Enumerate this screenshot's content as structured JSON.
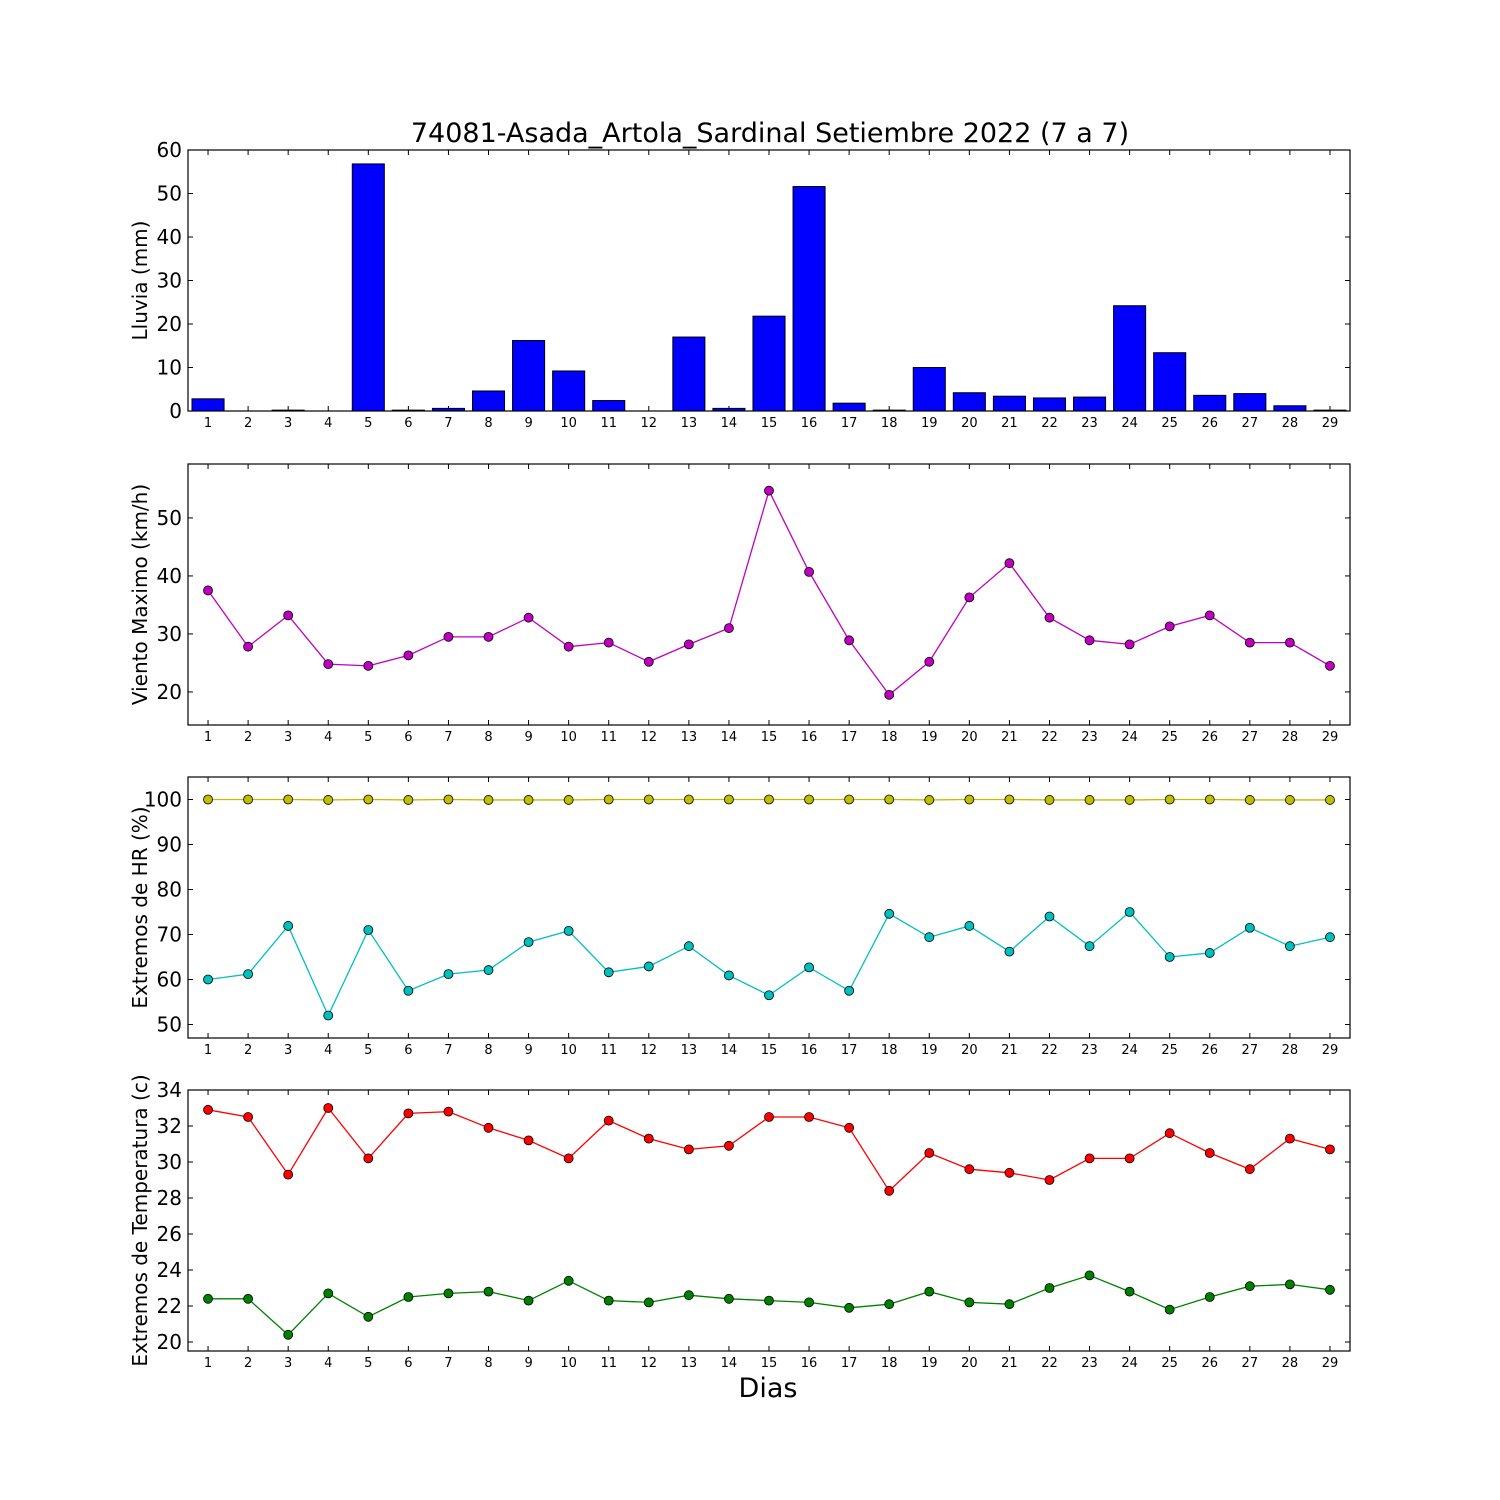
{
  "figure": {
    "title": "74081-Asada_Artola_Sardinal Setiembre 2022  (7 a 7)",
    "xlabel": "Dias"
  },
  "chart_data": [
    {
      "type": "bar",
      "ylabel": "Lluvia (mm)",
      "ylim": [
        0,
        60
      ],
      "yticks": [
        0,
        10,
        20,
        30,
        40,
        50,
        60
      ],
      "xticks": [
        1,
        2,
        3,
        4,
        5,
        6,
        7,
        8,
        9,
        10,
        11,
        12,
        13,
        14,
        15,
        16,
        17,
        18,
        19,
        20,
        21,
        22,
        23,
        24,
        25,
        26,
        27,
        28,
        29
      ],
      "grid": false,
      "series": [
        {
          "color": "#0000ff",
          "x": [
            1,
            2,
            3,
            4,
            5,
            6,
            7,
            8,
            9,
            10,
            11,
            12,
            13,
            14,
            15,
            16,
            17,
            18,
            19,
            20,
            21,
            22,
            23,
            24,
            25,
            26,
            27,
            28,
            29
          ],
          "values": [
            2.8,
            0,
            0.2,
            0,
            56.8,
            0.2,
            0.6,
            4.6,
            16.2,
            9.2,
            2.4,
            0,
            17.0,
            0.6,
            21.8,
            51.6,
            1.8,
            0.2,
            10.0,
            4.2,
            3.4,
            3.0,
            3.2,
            24.2,
            13.4,
            3.6,
            4.0,
            1.2,
            0.2
          ]
        }
      ]
    },
    {
      "type": "line",
      "ylabel": "Viento Maximo (km/h)",
      "ylim": [
        14.3,
        59.3
      ],
      "yticks": [
        20,
        30,
        40,
        50
      ],
      "xticks": [
        1,
        2,
        3,
        4,
        5,
        6,
        7,
        8,
        9,
        10,
        11,
        12,
        13,
        14,
        15,
        16,
        17,
        18,
        19,
        20,
        21,
        22,
        23,
        24,
        25,
        26,
        27,
        28,
        29
      ],
      "grid": false,
      "series": [
        {
          "color": "#bf00bf",
          "x": [
            1,
            2,
            3,
            4,
            5,
            6,
            7,
            8,
            9,
            10,
            11,
            12,
            13,
            14,
            15,
            16,
            17,
            18,
            19,
            20,
            21,
            22,
            23,
            24,
            25,
            26,
            27,
            28,
            29
          ],
          "values": [
            37.5,
            27.8,
            33.2,
            24.8,
            24.5,
            26.3,
            29.5,
            29.5,
            32.8,
            27.8,
            28.5,
            25.2,
            28.2,
            31.0,
            54.7,
            40.7,
            28.9,
            19.5,
            25.2,
            36.3,
            42.2,
            32.8,
            28.9,
            28.2,
            31.3,
            33.2,
            28.5,
            28.5,
            24.5
          ]
        }
      ]
    },
    {
      "type": "line",
      "ylabel": "Extremos de HR (%)",
      "ylim": [
        47,
        105
      ],
      "yticks": [
        50,
        60,
        70,
        80,
        90,
        100
      ],
      "xticks": [
        1,
        2,
        3,
        4,
        5,
        6,
        7,
        8,
        9,
        10,
        11,
        12,
        13,
        14,
        15,
        16,
        17,
        18,
        19,
        20,
        21,
        22,
        23,
        24,
        25,
        26,
        27,
        28,
        29
      ],
      "grid": false,
      "series": [
        {
          "color": "#bfbf00",
          "x": [
            1,
            2,
            3,
            4,
            5,
            6,
            7,
            8,
            9,
            10,
            11,
            12,
            13,
            14,
            15,
            16,
            17,
            18,
            19,
            20,
            21,
            22,
            23,
            24,
            25,
            26,
            27,
            28,
            29
          ],
          "values": [
            100,
            100,
            100,
            99.9,
            100,
            99.9,
            100,
            99.9,
            99.9,
            99.9,
            100,
            100,
            100,
            100,
            100,
            100,
            100,
            100,
            99.9,
            100,
            100,
            99.9,
            99.9,
            99.9,
            100,
            100,
            99.9,
            99.9,
            99.9
          ]
        },
        {
          "color": "#00bfbf",
          "x": [
            1,
            2,
            3,
            4,
            5,
            6,
            7,
            8,
            9,
            10,
            11,
            12,
            13,
            14,
            15,
            16,
            17,
            18,
            19,
            20,
            21,
            22,
            23,
            24,
            25,
            26,
            27,
            28,
            29
          ],
          "values": [
            60.0,
            61.2,
            71.9,
            52.0,
            71.0,
            57.5,
            61.2,
            62.1,
            68.3,
            70.8,
            61.6,
            62.9,
            67.4,
            60.9,
            56.5,
            62.7,
            57.5,
            74.6,
            69.4,
            71.9,
            66.2,
            74.0,
            67.4,
            75.0,
            65.0,
            65.9,
            71.5,
            67.4,
            69.4
          ]
        }
      ]
    },
    {
      "type": "line",
      "ylabel": "Extremos de Temperatura (c)",
      "ylim": [
        19.5,
        34
      ],
      "yticks": [
        20,
        22,
        24,
        26,
        28,
        30,
        32,
        34
      ],
      "xticks": [
        1,
        2,
        3,
        4,
        5,
        6,
        7,
        8,
        9,
        10,
        11,
        12,
        13,
        14,
        15,
        16,
        17,
        18,
        19,
        20,
        21,
        22,
        23,
        24,
        25,
        26,
        27,
        28,
        29
      ],
      "grid": false,
      "series": [
        {
          "color": "#ff0000",
          "x": [
            1,
            2,
            3,
            4,
            5,
            6,
            7,
            8,
            9,
            10,
            11,
            12,
            13,
            14,
            15,
            16,
            17,
            18,
            19,
            20,
            21,
            22,
            23,
            24,
            25,
            26,
            27,
            28,
            29
          ],
          "values": [
            32.9,
            32.5,
            29.3,
            33.0,
            30.2,
            32.7,
            32.8,
            31.9,
            31.2,
            30.2,
            32.3,
            31.3,
            30.7,
            30.9,
            32.5,
            32.5,
            31.9,
            28.4,
            30.5,
            29.6,
            29.4,
            29.0,
            30.2,
            30.2,
            31.6,
            30.5,
            29.6,
            31.3,
            30.7
          ]
        },
        {
          "color": "#008000",
          "x": [
            1,
            2,
            3,
            4,
            5,
            6,
            7,
            8,
            9,
            10,
            11,
            12,
            13,
            14,
            15,
            16,
            17,
            18,
            19,
            20,
            21,
            22,
            23,
            24,
            25,
            26,
            27,
            28,
            29
          ],
          "values": [
            22.4,
            22.4,
            20.4,
            22.7,
            21.4,
            22.5,
            22.7,
            22.8,
            22.3,
            23.4,
            22.3,
            22.2,
            22.6,
            22.4,
            22.3,
            22.2,
            21.9,
            22.1,
            22.8,
            22.2,
            22.1,
            23.0,
            23.7,
            22.8,
            21.8,
            22.5,
            23.1,
            23.2,
            22.9
          ]
        }
      ]
    }
  ]
}
